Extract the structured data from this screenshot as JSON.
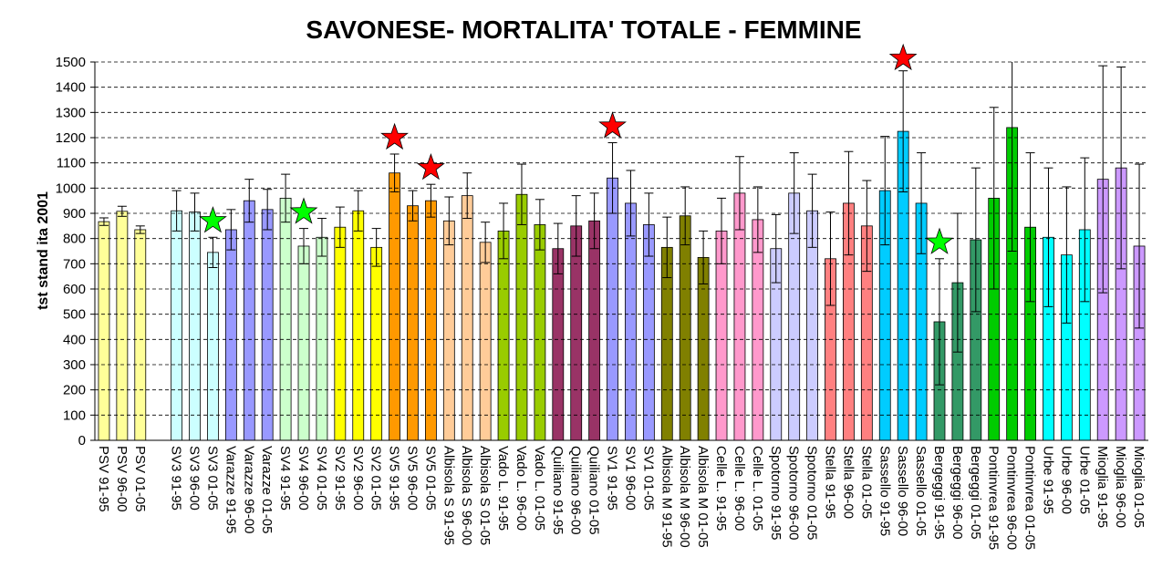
{
  "chart_data": {
    "type": "bar",
    "title": "SAVONESE- MORTALITA' TOTALE - FEMMINE",
    "y_label": "tst stand ita 2001",
    "categories": [
      "PSV 91-95",
      "PSV 96-00",
      "PSV 01-05",
      null,
      "SV3 91-95",
      "SV3 96-00",
      "SV3 01-05",
      "Varazze 91-95",
      "Varazze 96-00",
      "Varazze 01-05",
      "SV4 91-95",
      "SV4 96-00",
      "SV4 01-05",
      "SV2 91-95",
      "SV2 96-00",
      "SV2 01-05",
      "SV5 91-95",
      "SV5 96-00",
      "SV5 01-05",
      "Albisola S 91-95",
      "Albisola S 96-00",
      "Albisola S 01-05",
      "Vado L. 91-95",
      "Vado L. 96-00",
      "Vado L. 01-05",
      "Quiliano 91-95",
      "Quiliano 96-00",
      "Quiliano 01-05",
      "SV1 91-95",
      "SV1 96-00",
      "SV1 01-05",
      "Albisola M 91-95",
      "Albisola M 96-00",
      "Albisola M 01-05",
      "Celle L. 91-95",
      "Celle L. 96-00",
      "Celle L. 01-05",
      "Spotorno 91-95",
      "Spotorno 96-00",
      "Spotorno 01-05",
      "Stella 91-95",
      "Stella 96-00",
      "Stella 01-05",
      "Sassello 91-95",
      "Sassello 96-00",
      "Sassello 01-05",
      "Bergeggi 91-95",
      "Bergeggi 96-00",
      "Bergeggi 01-05",
      "Pontinvrea 91-95",
      "Pontinvrea 96-00",
      "Pontinvrea 01-05",
      "Urbe 91-95",
      "Urbe 96-00",
      "Urbe 01-05",
      "Mioglia 91-95",
      "Mioglia 96-00",
      "Mioglia 01-05"
    ],
    "values": [
      867,
      908,
      835,
      null,
      910,
      905,
      745,
      835,
      950,
      915,
      960,
      770,
      805,
      845,
      910,
      765,
      1060,
      930,
      950,
      870,
      970,
      785,
      830,
      975,
      855,
      760,
      850,
      870,
      1040,
      940,
      855,
      765,
      890,
      725,
      830,
      980,
      875,
      760,
      980,
      910,
      720,
      940,
      850,
      990,
      1225,
      940,
      470,
      625,
      795,
      960,
      1240,
      845,
      805,
      735,
      835,
      1035,
      1080,
      770
    ],
    "errors": [
      15,
      20,
      15,
      null,
      80,
      75,
      60,
      80,
      85,
      80,
      95,
      70,
      75,
      80,
      80,
      75,
      75,
      60,
      65,
      95,
      90,
      80,
      110,
      120,
      100,
      100,
      120,
      110,
      140,
      130,
      125,
      120,
      115,
      105,
      130,
      145,
      130,
      135,
      160,
      145,
      185,
      205,
      180,
      215,
      240,
      200,
      250,
      275,
      285,
      360,
      490,
      295,
      275,
      270,
      285,
      450,
      400,
      325
    ],
    "colors": [
      "#ffff99",
      "#ffff99",
      "#ffff99",
      null,
      "#ccffff",
      "#ccffff",
      "#ccffff",
      "#9999ff",
      "#9999ff",
      "#9999ff",
      "#ccffcc",
      "#ccffcc",
      "#ccffcc",
      "#ffff00",
      "#ffff00",
      "#ffff00",
      "#ff9900",
      "#ff9900",
      "#ff9900",
      "#ffcc99",
      "#ffcc99",
      "#ffcc99",
      "#99cc00",
      "#99cc00",
      "#99cc00",
      "#993366",
      "#993366",
      "#993366",
      "#9999ff",
      "#9999ff",
      "#9999ff",
      "#808000",
      "#808000",
      "#808000",
      "#ff99cc",
      "#ff99cc",
      "#ff99cc",
      "#ccccff",
      "#ccccff",
      "#ccccff",
      "#ff8080",
      "#ff8080",
      "#ff8080",
      "#00ccff",
      "#00ccff",
      "#00ccff",
      "#339966",
      "#339966",
      "#339966",
      "#00cc00",
      "#00cc00",
      "#00cc00",
      "#00ffff",
      "#00ffff",
      "#00ffff",
      "#cc99ff",
      "#cc99ff",
      "#cc99ff"
    ],
    "stars": [
      {
        "category": "SV3 01-05",
        "color": "#00ff00"
      },
      {
        "category": "SV4 96-00",
        "color": "#00ff00"
      },
      {
        "category": "SV5 91-95",
        "color": "#ff0000"
      },
      {
        "category": "SV5 01-05",
        "color": "#ff0000"
      },
      {
        "category": "SV1 91-95",
        "color": "#ff0000"
      },
      {
        "category": "Sassello 96-00",
        "color": "#ff0000"
      },
      {
        "category": "Bergeggi 91-95",
        "color": "#00ff00"
      }
    ],
    "ylim": [
      0,
      1500
    ],
    "yticks": [
      0,
      100,
      200,
      300,
      400,
      500,
      600,
      700,
      800,
      900,
      1000,
      1100,
      1200,
      1300,
      1400,
      1500
    ],
    "grid": true
  }
}
